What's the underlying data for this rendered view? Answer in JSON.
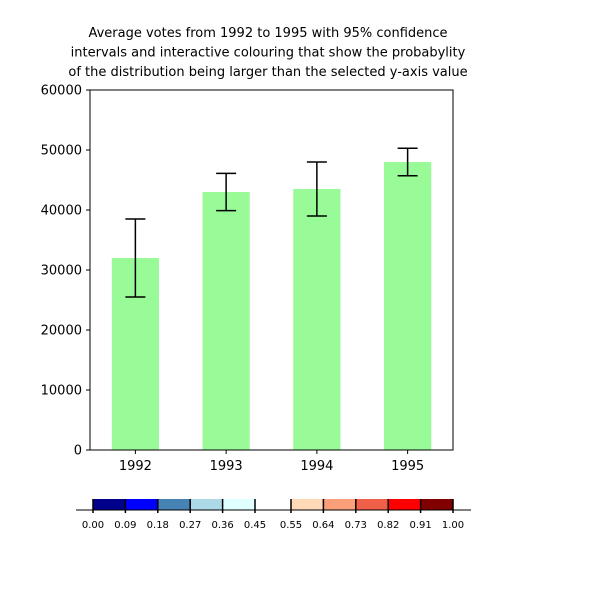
{
  "chart_data": {
    "type": "bar",
    "title_lines": [
      "Average votes from 1992 to 1995 with 95% confidence",
      "intervals and interactive colouring that show the probabylity",
      "of the distribution being larger than the selected y-axis value"
    ],
    "categories": [
      "1992",
      "1993",
      "1994",
      "1995"
    ],
    "values": [
      32000,
      43000,
      43500,
      48000
    ],
    "error_low": [
      25500,
      39900,
      39000,
      45700
    ],
    "error_high": [
      38500,
      46100,
      48000,
      50300
    ],
    "bar_color": "#98fb98",
    "error_color": "#000000",
    "ylim": [
      0,
      60000
    ],
    "yticks": [
      0,
      10000,
      20000,
      30000,
      40000,
      50000,
      60000
    ],
    "grid": false,
    "colorbar": {
      "ticks": [
        "0.00",
        "0.09",
        "0.18",
        "0.27",
        "0.36",
        "0.45",
        "0.55",
        "0.64",
        "0.73",
        "0.82",
        "0.91",
        "1.00"
      ],
      "colors": [
        "#00008b",
        "#0000ff",
        "#4682b4",
        "#add8e6",
        "#e0ffff",
        "#ffffff",
        "#ffdab9",
        "#fa9f7a",
        "#f06048",
        "#ff0000",
        "#800000"
      ]
    }
  }
}
